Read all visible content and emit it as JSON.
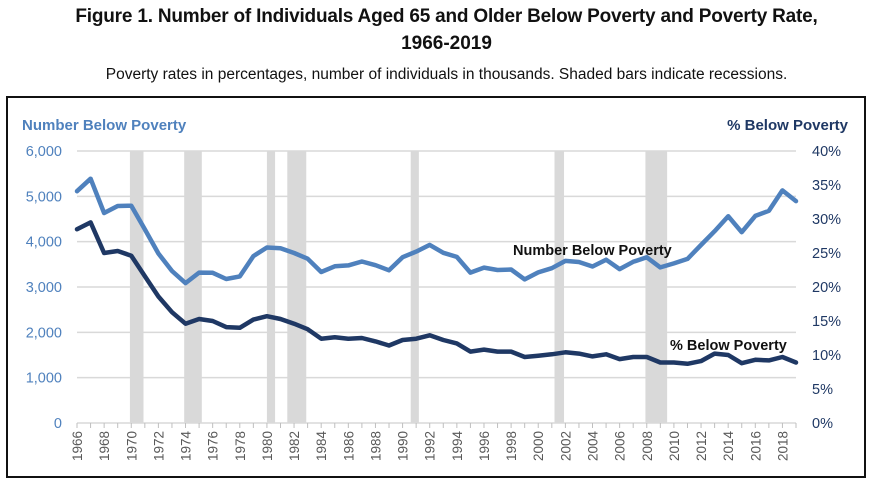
{
  "figure": {
    "title_line1": "Figure 1. Number of Individuals Aged 65 and Older Below Poverty and Poverty Rate,",
    "title_line2": "1966-2019",
    "subtitle": "Poverty rates in percentages, number of individuals in thousands. Shaded bars indicate recessions."
  },
  "chart_data": {
    "type": "line",
    "title": "Figure 1. Number of Individuals Aged 65 and Older Below Poverty and Poverty Rate, 1966-2019",
    "subtitle": "Poverty rates in percentages, number of individuals in thousands. Shaded bars indicate recessions.",
    "x": [
      1966,
      1967,
      1968,
      1969,
      1970,
      1971,
      1972,
      1973,
      1974,
      1975,
      1976,
      1977,
      1978,
      1979,
      1980,
      1981,
      1982,
      1983,
      1984,
      1985,
      1986,
      1987,
      1988,
      1989,
      1990,
      1991,
      1992,
      1993,
      1994,
      1995,
      1996,
      1997,
      1998,
      1999,
      2000,
      2001,
      2002,
      2003,
      2004,
      2005,
      2006,
      2007,
      2008,
      2009,
      2010,
      2011,
      2012,
      2013,
      2014,
      2015,
      2016,
      2017,
      2018,
      2019
    ],
    "xticks": [
      "1966",
      "1968",
      "1970",
      "1972",
      "1974",
      "1976",
      "1978",
      "1980",
      "1982",
      "1984",
      "1986",
      "1988",
      "1990",
      "1992",
      "1994",
      "1996",
      "1998",
      "2000",
      "2002",
      "2004",
      "2006",
      "2008",
      "2010",
      "2012",
      "2014",
      "2016",
      "2018"
    ],
    "series": [
      {
        "name": "Number Below Poverty",
        "axis": "left",
        "color": "#4f81bd",
        "label": "Number Below Poverty",
        "values": [
          5114,
          5388,
          4632,
          4787,
          4793,
          4273,
          3738,
          3354,
          3085,
          3317,
          3313,
          3177,
          3233,
          3682,
          3871,
          3853,
          3751,
          3625,
          3330,
          3456,
          3477,
          3563,
          3481,
          3369,
          3658,
          3781,
          3928,
          3755,
          3663,
          3318,
          3428,
          3376,
          3386,
          3167,
          3323,
          3414,
          3576,
          3552,
          3453,
          3603,
          3394,
          3556,
          3656,
          3433,
          3520,
          3620,
          3926,
          4231,
          4562,
          4209,
          4568,
          4681,
          5131,
          4894
        ]
      },
      {
        "name": "% Below Poverty",
        "axis": "right",
        "color": "#1f3864",
        "label": "% Below Poverty",
        "values": [
          28.5,
          29.5,
          25.0,
          25.3,
          24.6,
          21.6,
          18.6,
          16.3,
          14.6,
          15.3,
          15.0,
          14.1,
          14.0,
          15.2,
          15.7,
          15.3,
          14.6,
          13.8,
          12.4,
          12.6,
          12.4,
          12.5,
          12.0,
          11.4,
          12.2,
          12.4,
          12.9,
          12.2,
          11.7,
          10.5,
          10.8,
          10.5,
          10.5,
          9.7,
          9.9,
          10.1,
          10.4,
          10.2,
          9.8,
          10.1,
          9.4,
          9.7,
          9.7,
          8.9,
          8.9,
          8.7,
          9.1,
          10.2,
          10.0,
          8.8,
          9.3,
          9.2,
          9.7,
          8.9
        ]
      }
    ],
    "recessions": [
      [
        1969.9,
        1970.9
      ],
      [
        1973.9,
        1975.2
      ],
      [
        1980.0,
        1980.6
      ],
      [
        1981.5,
        1982.9
      ],
      [
        1990.6,
        1991.2
      ],
      [
        2001.2,
        2001.9
      ],
      [
        2007.9,
        2009.5
      ]
    ],
    "left_axis": {
      "title": "Number Below Poverty",
      "ylim": [
        0,
        6000
      ],
      "ticks": [
        "0",
        "1,000",
        "2,000",
        "3,000",
        "4,000",
        "5,000",
        "6,000"
      ],
      "tick_values": [
        0,
        1000,
        2000,
        3000,
        4000,
        5000,
        6000
      ]
    },
    "right_axis": {
      "title": "% Below Poverty",
      "ylim": [
        0,
        40
      ],
      "ticks": [
        "0%",
        "5%",
        "10%",
        "15%",
        "20%",
        "25%",
        "30%",
        "35%",
        "40%"
      ],
      "tick_values": [
        0,
        5,
        10,
        15,
        20,
        25,
        30,
        35,
        40
      ]
    },
    "grid": true,
    "legend": "inline labels"
  },
  "colors": {
    "left_axis_text": "#4f81bd",
    "right_axis_text": "#1f3864",
    "recession": "#d9d9d9",
    "grid": "#d9d9d9"
  }
}
